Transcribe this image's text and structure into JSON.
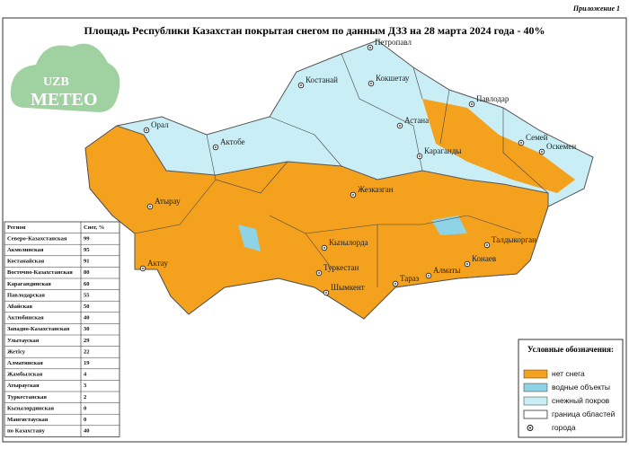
{
  "header": {
    "appendix": "Приложение 1",
    "title": "Площадь Республики Казахстан покрытая снегом по данным ДЗЗ на 28 марта 2024 года - 40%"
  },
  "logo": {
    "line1": "UZB",
    "line2": "METEO"
  },
  "table": {
    "columns": [
      "Регион",
      "Снег, %"
    ],
    "rows": [
      [
        "Северо-Казахстанская",
        99
      ],
      [
        "Акмолинская",
        95
      ],
      [
        "Костанайская",
        91
      ],
      [
        "Восточно-Казахстанская",
        80
      ],
      [
        "Карагандинская",
        60
      ],
      [
        "Павлодарская",
        55
      ],
      [
        "Абайская",
        50
      ],
      [
        "Актюбинская",
        40
      ],
      [
        "Западно-Казахстанская",
        30
      ],
      [
        "Улытауская",
        29
      ],
      [
        "Жетісу",
        22
      ],
      [
        "Алматинская",
        19
      ],
      [
        "Жамбылская",
        4
      ],
      [
        "Атырауская",
        3
      ],
      [
        "Туркестанская",
        2
      ],
      [
        "Кызылординская",
        0
      ],
      [
        "Мангистауская",
        0
      ],
      [
        "по Казахстану",
        40
      ]
    ]
  },
  "cities": [
    "Петропавл",
    "Костанай",
    "Кокшетау",
    "Павлодар",
    "Астана",
    "Семей",
    "Орал",
    "Актобе",
    "Оскемен",
    "Караганды",
    "Атырау",
    "Жезказган",
    "Талдыкорган",
    "Кызылорда",
    "Актау",
    "Конаев",
    "Алматы",
    "Туркестан",
    "Шымкент",
    "Тараз"
  ],
  "legend": {
    "title": "Условные обозначения:",
    "items": [
      "нет снега",
      "водные объекты",
      "снежный покров",
      "граница областей",
      "города"
    ]
  }
}
